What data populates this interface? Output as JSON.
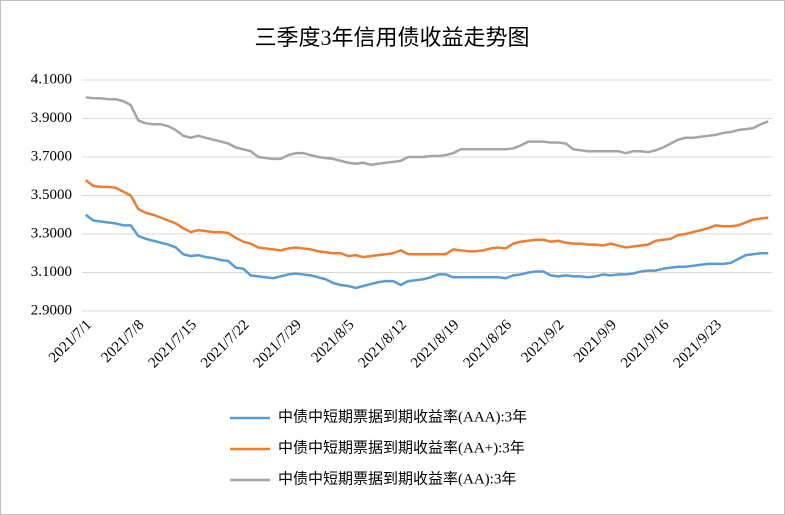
{
  "chart_data": {
    "type": "line",
    "title": "三季度3年信用债收益走势图",
    "categories": [
      "2021/7/1",
      null,
      null,
      null,
      null,
      null,
      null,
      "2021/7/8",
      null,
      null,
      null,
      null,
      null,
      null,
      "2021/7/15",
      null,
      null,
      null,
      null,
      null,
      null,
      "2021/7/22",
      null,
      null,
      null,
      null,
      null,
      null,
      "2021/7/29",
      null,
      null,
      null,
      null,
      null,
      null,
      "2021/8/5",
      null,
      null,
      null,
      null,
      null,
      null,
      "2021/8/12",
      null,
      null,
      null,
      null,
      null,
      null,
      "2021/8/19",
      null,
      null,
      null,
      null,
      null,
      null,
      "2021/8/26",
      null,
      null,
      null,
      null,
      null,
      null,
      "2021/9/2",
      null,
      null,
      null,
      null,
      null,
      null,
      "2021/9/9",
      null,
      null,
      null,
      null,
      null,
      null,
      "2021/9/16",
      null,
      null,
      null,
      null,
      null,
      null,
      "2021/9/23",
      null,
      null,
      null,
      null,
      null,
      null,
      null
    ],
    "series": [
      {
        "name": "中债中短期票据到期收益率(AAA):3年",
        "color": "#5b9bd5",
        "values": [
          3.4,
          3.37,
          3.365,
          3.36,
          3.355,
          3.345,
          3.345,
          3.29,
          3.275,
          3.265,
          3.255,
          3.245,
          3.23,
          3.195,
          3.185,
          3.19,
          3.18,
          3.175,
          3.165,
          3.16,
          3.125,
          3.12,
          3.085,
          3.08,
          3.075,
          3.07,
          3.08,
          3.09,
          3.095,
          3.09,
          3.085,
          3.075,
          3.065,
          3.045,
          3.035,
          3.03,
          3.02,
          3.03,
          3.04,
          3.05,
          3.055,
          3.055,
          3.035,
          3.055,
          3.06,
          3.065,
          3.075,
          3.09,
          3.09,
          3.075,
          3.075,
          3.075,
          3.075,
          3.075,
          3.075,
          3.075,
          3.07,
          3.085,
          3.09,
          3.1,
          3.105,
          3.105,
          3.085,
          3.08,
          3.085,
          3.08,
          3.08,
          3.075,
          3.08,
          3.09,
          3.085,
          3.09,
          3.09,
          3.095,
          3.105,
          3.11,
          3.11,
          3.12,
          3.125,
          3.13,
          3.13,
          3.135,
          3.14,
          3.145,
          3.145,
          3.145,
          3.15,
          3.17,
          3.19,
          3.195,
          3.2,
          3.2
        ]
      },
      {
        "name": "中债中短期票据到期收益率(AA+):3年",
        "color": "#ed7d31",
        "values": [
          3.58,
          3.55,
          3.545,
          3.545,
          3.54,
          3.52,
          3.5,
          3.43,
          3.41,
          3.4,
          3.385,
          3.37,
          3.355,
          3.33,
          3.31,
          3.32,
          3.315,
          3.31,
          3.31,
          3.305,
          3.28,
          3.26,
          3.25,
          3.23,
          3.225,
          3.22,
          3.215,
          3.225,
          3.23,
          3.225,
          3.22,
          3.21,
          3.205,
          3.2,
          3.2,
          3.185,
          3.19,
          3.18,
          3.185,
          3.19,
          3.195,
          3.2,
          3.215,
          3.195,
          3.195,
          3.195,
          3.195,
          3.195,
          3.195,
          3.22,
          3.215,
          3.21,
          3.21,
          3.215,
          3.225,
          3.23,
          3.225,
          3.25,
          3.26,
          3.265,
          3.27,
          3.27,
          3.26,
          3.265,
          3.255,
          3.25,
          3.25,
          3.245,
          3.245,
          3.24,
          3.25,
          3.24,
          3.23,
          3.235,
          3.24,
          3.245,
          3.265,
          3.27,
          3.275,
          3.295,
          3.3,
          3.31,
          3.32,
          3.33,
          3.345,
          3.34,
          3.34,
          3.345,
          3.36,
          3.375,
          3.38,
          3.385
        ]
      },
      {
        "name": "中债中短期票据到期收益率(AA):3年",
        "color": "#a5a5a5",
        "values": [
          4.01,
          4.005,
          4.005,
          4.0,
          4.0,
          3.99,
          3.97,
          3.89,
          3.875,
          3.87,
          3.87,
          3.86,
          3.84,
          3.81,
          3.8,
          3.81,
          3.8,
          3.79,
          3.78,
          3.77,
          3.75,
          3.74,
          3.73,
          3.7,
          3.695,
          3.69,
          3.69,
          3.71,
          3.72,
          3.72,
          3.71,
          3.7,
          3.695,
          3.69,
          3.68,
          3.67,
          3.665,
          3.67,
          3.66,
          3.665,
          3.67,
          3.675,
          3.68,
          3.7,
          3.7,
          3.7,
          3.705,
          3.705,
          3.71,
          3.72,
          3.74,
          3.74,
          3.74,
          3.74,
          3.74,
          3.74,
          3.74,
          3.745,
          3.76,
          3.78,
          3.78,
          3.78,
          3.775,
          3.775,
          3.77,
          3.74,
          3.735,
          3.73,
          3.73,
          3.73,
          3.73,
          3.73,
          3.72,
          3.73,
          3.73,
          3.725,
          3.735,
          3.75,
          3.77,
          3.79,
          3.8,
          3.8,
          3.805,
          3.81,
          3.815,
          3.825,
          3.83,
          3.84,
          3.845,
          3.85,
          3.87,
          3.885
        ]
      }
    ],
    "ylim": [
      2.9,
      4.1
    ],
    "yticks": [
      {
        "value": 2.9,
        "label": "2.9000"
      },
      {
        "value": 3.1,
        "label": "3.1000"
      },
      {
        "value": 3.3,
        "label": "3.3000"
      },
      {
        "value": 3.5,
        "label": "3.5000"
      },
      {
        "value": 3.7,
        "label": "3.7000"
      },
      {
        "value": 3.9,
        "label": "3.9000"
      },
      {
        "value": 4.1,
        "label": "4.1000"
      }
    ],
    "grid": true,
    "legend": "bottom"
  }
}
